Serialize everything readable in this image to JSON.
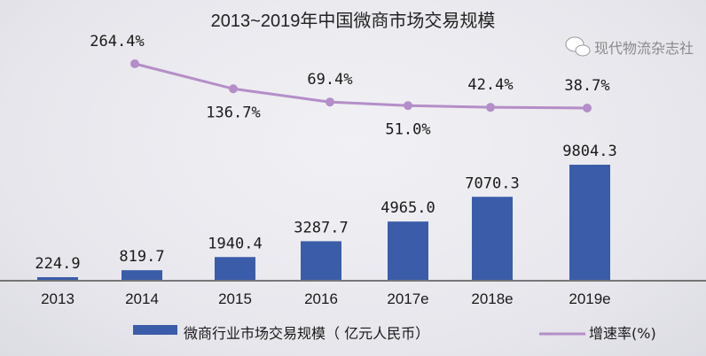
{
  "chart_data": {
    "type": "bar+line",
    "title": "2013~2019年中国微商市场交易规模",
    "categories": [
      "2013",
      "2014",
      "2015",
      "2016",
      "2017e",
      "2018e",
      "2019e"
    ],
    "series": [
      {
        "name": "微商行业市场交易规模（ 亿元人民币）",
        "type": "bar",
        "color": "#3b5ca9",
        "values": [
          224.9,
          819.7,
          1940.4,
          3287.7,
          4965.0,
          7070.3,
          9804.3
        ],
        "labels": [
          "224.9",
          "819.7",
          "1940.4",
          "3287.7",
          "4965.0",
          "7070.3",
          "9804.3"
        ]
      },
      {
        "name": "增速率(%)",
        "type": "line",
        "color": "#b48ec8",
        "values": [
          null,
          264.4,
          136.7,
          69.4,
          51.0,
          42.4,
          38.7
        ],
        "labels": [
          "",
          "264.4%",
          "136.7%",
          "69.4%",
          "51.0%",
          "42.4%",
          "38.7%"
        ]
      }
    ],
    "grid": false,
    "legend": "bottom"
  },
  "watermark": "现代物流杂志社"
}
